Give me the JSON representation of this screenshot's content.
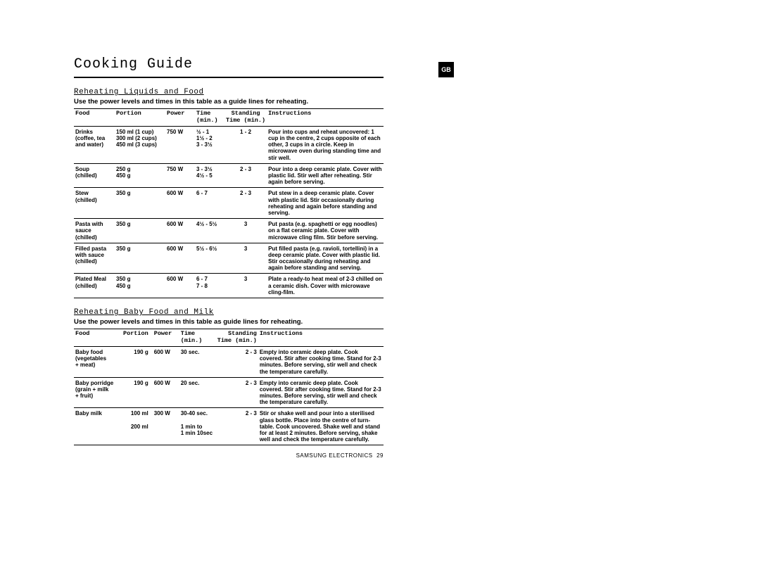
{
  "title": "Cooking Guide",
  "badge": "GB",
  "footer": {
    "brand": "SAMSUNG ELECTRONICS",
    "page": "29"
  },
  "section1": {
    "heading": "Reheating Liquids and Food",
    "intro": "Use the power levels and times in this table as a guide lines for reheating.",
    "headers": {
      "food": "Food",
      "portion": "Portion",
      "power": "Power",
      "time": "Time\n(min.)",
      "stand": "Standing\nTime (min.)",
      "instr": "Instructions"
    },
    "rows": [
      {
        "food": "Drinks\n(coffee, tea\nand water)",
        "portion": "150 ml (1 cup)\n300 ml (2 cups)\n450 ml (3 cups)",
        "power": "750 W",
        "time": "½ - 1\n1½ - 2\n3 - 3½",
        "stand": "1 - 2",
        "instr": "Pour into cups and reheat uncovered: 1 cup in the centre, 2 cups opposite of each other, 3 cups in a circle. Keep in microwave oven during standing time and stir well."
      },
      {
        "food": "Soup\n(chilled)",
        "portion": "250 g\n450 g",
        "power": "750 W",
        "time": "3 - 3½\n4½ - 5",
        "stand": "2 - 3",
        "instr": "Pour into a deep ceramic plate. Cover with plastic lid. Stir well after reheating. Stir again before serving."
      },
      {
        "food": "Stew\n(chilled)",
        "portion": "350 g",
        "power": "600 W",
        "time": "6 - 7",
        "stand": "2 - 3",
        "instr": "Put stew in a deep ceramic plate. Cover with plastic lid. Stir occasionally during reheating and again before standing and serving."
      },
      {
        "food": "Pasta with\nsauce\n(chilled)",
        "portion": "350 g",
        "power": "600 W",
        "time": "4½ - 5½",
        "stand": "3",
        "instr": "Put pasta (e.g. spaghetti or egg noodles) on a flat ceramic plate. Cover with microwave cling film. Stir before serving."
      },
      {
        "food": "Filled pasta\nwith sauce\n(chilled)",
        "portion": "350 g",
        "power": "600 W",
        "time": "5½ - 6½",
        "stand": "3",
        "instr": "Put filled pasta (e.g. ravioli, tortellini) in a deep ceramic plate. Cover with plastic lid. Stir occasionally during reheating and again before standing and serving."
      },
      {
        "food": "Plated Meal\n(chilled)",
        "portion": "350 g\n450 g",
        "power": "600 W",
        "time": "6 - 7\n7 - 8",
        "stand": "3",
        "instr": "Plate a ready-to heat meal of 2-3 chilled on a ceramic dish. Cover with microwave cling-film."
      }
    ]
  },
  "section2": {
    "heading": "Reheating Baby Food and Milk",
    "intro": "Use the power levels and times in this table as guide lines for reheating.",
    "headers": {
      "food": "Food",
      "portion": "Portion",
      "power": "Power",
      "time": "Time\n(min.)",
      "stand": "Standing\nTime (min.)",
      "instr": "Instructions"
    },
    "rows": [
      {
        "food": "Baby food\n(vegetables\n + meat)",
        "portion": "190 g",
        "power": "600 W",
        "time": "30 sec.",
        "stand": "2 - 3",
        "instr": "Empty into ceramic deep plate. Cook covered. Stir after cooking time. Stand for 2-3 minutes. Before serving, stir well and check the temperature carefully."
      },
      {
        "food": "Baby porridge\n(grain + milk\n + fruit)",
        "portion": "190 g",
        "power": "600 W",
        "time": "20 sec.",
        "stand": "2 - 3",
        "instr": "Empty into ceramic deep plate. Cook covered. Stir after cooking time. Stand for 2-3 minutes. Before serving, stir well and check the temperature carefully."
      },
      {
        "food": "Baby milk",
        "portion": "100 ml\n\n200 ml",
        "power": "300 W",
        "time": "30-40 sec.\n\n1 min to\n1 min 10sec",
        "stand": "2 - 3",
        "instr": "Stir or shake well and pour into a sterilised glass bottle. Place into the centre of turn-table. Cook uncovered. Shake well and stand for at least 2 minutes. Before serving, shake well and check the temperature carefully."
      }
    ]
  }
}
